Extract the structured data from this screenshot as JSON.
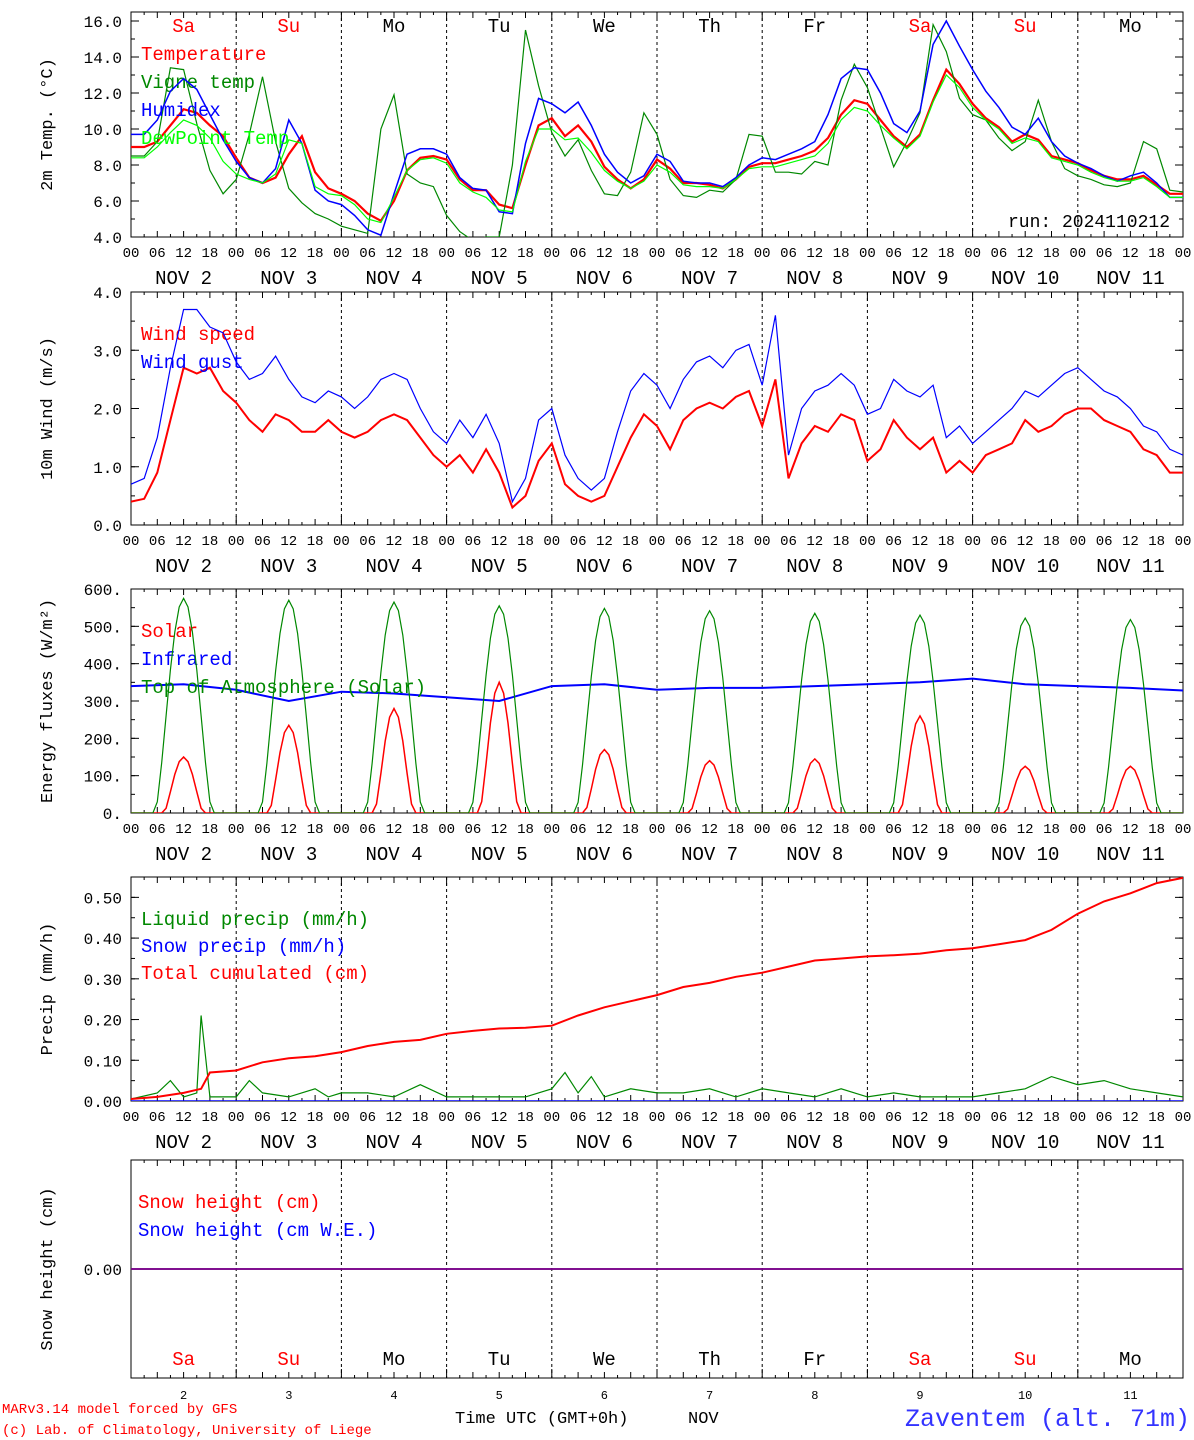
{
  "colors": {
    "red": "#ff0000",
    "green": "#008800",
    "blue": "#0000ff",
    "lightgreen": "#00ff00",
    "purple": "#800080",
    "black": "#000000",
    "place": "#3333ff"
  },
  "day_headers": [
    "Sa",
    "Su",
    "Mo",
    "Tu",
    "We",
    "Th",
    "Fr",
    "Sa",
    "Su",
    "Mo"
  ],
  "weekend_flags": [
    true,
    true,
    false,
    false,
    false,
    false,
    false,
    true,
    true,
    false
  ],
  "hour_ticks": [
    "00",
    "06",
    "12",
    "18"
  ],
  "hour_end": "00",
  "date_labels": [
    "NOV  2",
    "NOV  3",
    "NOV  4",
    "NOV  5",
    "NOV  6",
    "NOV  7",
    "NOV  8",
    "NOV  9",
    "NOV 10",
    "NOV 11"
  ],
  "bottom_day_numbers": [
    "2",
    "3",
    "4",
    "5",
    "6",
    "7",
    "8",
    "9",
    "10",
    "11"
  ],
  "footer": {
    "credit1": "MARv3.14 model forced by GFS",
    "credit2": "(c) Lab. of Climatology, University of Liege",
    "xlabel": "Time UTC (GMT+0h)",
    "month": "NOV",
    "place": "Zaventem (alt. 71m)"
  },
  "run_label": "run: 2024110212",
  "chart_data": [
    {
      "type": "line",
      "ylabel": "2m Temp. (°C)",
      "ylim": [
        4.0,
        16.5
      ],
      "yticks": [
        "4.0",
        "6.0",
        "8.0",
        "10.0",
        "12.0",
        "14.0",
        "16.0"
      ],
      "ytick_values": [
        4,
        6,
        8,
        10,
        12,
        14,
        16
      ],
      "x_hours": [
        0,
        3,
        6,
        9,
        12,
        15,
        18,
        21,
        24,
        27,
        30,
        33,
        36,
        39,
        42,
        45,
        48,
        51,
        54,
        57,
        60,
        63,
        66,
        69,
        72,
        75,
        78,
        81,
        84,
        87,
        90,
        93,
        96,
        99,
        102,
        105,
        108,
        111,
        114,
        117,
        120,
        123,
        126,
        129,
        132,
        135,
        138,
        141,
        144,
        147,
        150,
        153,
        156,
        159,
        162,
        165,
        168,
        171,
        174,
        177,
        180,
        183,
        186,
        189,
        192,
        195,
        198,
        201,
        204,
        207,
        210,
        213,
        216,
        219,
        222,
        225,
        228,
        231,
        234,
        237,
        240
      ],
      "series": [
        {
          "name": "Temperature",
          "color": "#ff0000",
          "width": 2.2,
          "values": [
            9.0,
            9.0,
            9.3,
            10.2,
            11.1,
            10.9,
            10.2,
            9.6,
            8.4,
            7.3,
            7.0,
            7.3,
            8.6,
            9.6,
            7.6,
            6.7,
            6.4,
            6.0,
            5.3,
            4.9,
            6.0,
            7.7,
            8.4,
            8.5,
            8.3,
            7.2,
            6.6,
            6.6,
            5.8,
            5.6,
            8.0,
            10.2,
            10.6,
            9.6,
            10.2,
            9.3,
            7.9,
            7.2,
            6.7,
            7.2,
            8.3,
            7.8,
            7.0,
            7.0,
            6.9,
            6.7,
            7.2,
            7.9,
            8.1,
            8.1,
            8.3,
            8.5,
            8.8,
            9.5,
            10.8,
            11.6,
            11.4,
            10.5,
            9.6,
            9.0,
            9.7,
            11.6,
            13.3,
            12.5,
            11.4,
            10.6,
            10.1,
            9.3,
            9.7,
            9.4,
            8.5,
            8.3,
            8.1,
            7.7,
            7.4,
            7.2,
            7.2,
            7.4,
            6.9,
            6.4,
            6.4
          ]
        },
        {
          "name": "Vigne temp",
          "color": "#008800",
          "width": 1.2,
          "values": [
            8.5,
            8.5,
            9.3,
            13.4,
            13.3,
            10.3,
            7.7,
            6.4,
            7.2,
            9.7,
            12.9,
            9.3,
            6.7,
            5.9,
            5.3,
            5.0,
            4.6,
            4.4,
            4.2,
            10.0,
            11.9,
            7.5,
            7.0,
            6.8,
            5.2,
            4.3,
            3.8,
            4.0,
            4.0,
            8.0,
            15.5,
            12.4,
            9.8,
            8.5,
            9.4,
            7.7,
            6.4,
            6.3,
            7.6,
            10.9,
            9.7,
            7.2,
            6.3,
            6.2,
            6.6,
            6.5,
            7.2,
            9.7,
            9.6,
            7.6,
            7.6,
            7.5,
            8.2,
            8.0,
            11.6,
            13.6,
            12.3,
            10.1,
            7.9,
            9.3,
            10.9,
            15.8,
            14.3,
            11.7,
            10.8,
            10.5,
            9.5,
            8.8,
            9.3,
            11.6,
            9.3,
            7.8,
            7.4,
            7.2,
            6.9,
            6.8,
            7.0,
            9.3,
            8.9,
            6.6,
            6.5
          ]
        },
        {
          "name": "Humidex",
          "color": "#0000ff",
          "width": 1.5,
          "values": [
            9.7,
            9.7,
            10.5,
            12.1,
            12.8,
            12.2,
            10.8,
            9.4,
            8.2,
            7.3,
            7.0,
            7.8,
            10.5,
            9.2,
            6.6,
            6.0,
            5.8,
            5.2,
            4.4,
            4.1,
            6.4,
            8.6,
            8.9,
            8.9,
            8.6,
            7.3,
            6.7,
            6.6,
            5.4,
            5.3,
            9.2,
            11.7,
            11.4,
            10.9,
            11.5,
            10.2,
            8.6,
            7.6,
            7.0,
            7.4,
            8.6,
            8.2,
            7.1,
            7.0,
            7.0,
            6.8,
            7.3,
            8.0,
            8.4,
            8.3,
            8.6,
            8.9,
            9.3,
            10.8,
            12.8,
            13.4,
            13.3,
            12.0,
            10.3,
            9.8,
            11.0,
            14.7,
            16.0,
            14.6,
            13.3,
            12.1,
            11.2,
            10.1,
            9.7,
            10.6,
            9.3,
            8.5,
            8.1,
            7.8,
            7.4,
            7.1,
            7.4,
            7.6,
            7.0,
            6.2,
            6.2
          ]
        },
        {
          "name": "DewPoint Temp",
          "color": "#00ff00",
          "width": 1.2,
          "values": [
            8.4,
            8.4,
            9.0,
            9.8,
            10.5,
            10.2,
            9.5,
            8.2,
            7.5,
            7.2,
            7.0,
            7.5,
            9.4,
            9.2,
            6.8,
            6.4,
            6.3,
            5.8,
            5.0,
            4.8,
            6.2,
            7.7,
            8.3,
            8.4,
            8.1,
            7.0,
            6.5,
            6.2,
            5.5,
            5.4,
            8.2,
            10.0,
            10.0,
            9.4,
            9.5,
            8.7,
            7.7,
            7.1,
            6.7,
            7.1,
            8.0,
            7.6,
            6.9,
            6.8,
            6.8,
            6.7,
            7.2,
            7.8,
            7.9,
            7.9,
            8.1,
            8.3,
            8.5,
            9.2,
            10.5,
            11.2,
            11.0,
            10.2,
            9.5,
            8.9,
            9.6,
            11.5,
            13.0,
            12.3,
            11.2,
            10.5,
            10.0,
            9.2,
            9.5,
            9.3,
            8.4,
            8.2,
            8.0,
            7.6,
            7.3,
            7.1,
            7.1,
            7.3,
            6.8,
            6.2,
            6.2
          ]
        }
      ]
    },
    {
      "type": "line",
      "ylabel": "10m Wind (m/s)",
      "ylim": [
        0.0,
        4.0
      ],
      "yticks": [
        "0.0",
        "1.0",
        "2.0",
        "3.0",
        "4.0"
      ],
      "ytick_values": [
        0,
        1,
        2,
        3,
        4
      ],
      "x_hours": [
        0,
        3,
        6,
        9,
        12,
        15,
        18,
        21,
        24,
        27,
        30,
        33,
        36,
        39,
        42,
        45,
        48,
        51,
        54,
        57,
        60,
        63,
        66,
        69,
        72,
        75,
        78,
        81,
        84,
        87,
        90,
        93,
        96,
        99,
        102,
        105,
        108,
        111,
        114,
        117,
        120,
        123,
        126,
        129,
        132,
        135,
        138,
        141,
        144,
        147,
        150,
        153,
        156,
        159,
        162,
        165,
        168,
        171,
        174,
        177,
        180,
        183,
        186,
        189,
        192,
        195,
        198,
        201,
        204,
        207,
        210,
        213,
        216,
        219,
        222,
        225,
        228,
        231,
        234,
        237,
        240
      ],
      "series": [
        {
          "name": "Wind speed",
          "color": "#ff0000",
          "width": 2.0,
          "values": [
            0.4,
            0.45,
            0.9,
            1.8,
            2.7,
            2.6,
            2.7,
            2.3,
            2.1,
            1.8,
            1.6,
            1.9,
            1.8,
            1.6,
            1.6,
            1.8,
            1.6,
            1.5,
            1.6,
            1.8,
            1.9,
            1.8,
            1.5,
            1.2,
            1.0,
            1.2,
            0.9,
            1.3,
            0.9,
            0.3,
            0.5,
            1.1,
            1.4,
            0.7,
            0.5,
            0.4,
            0.5,
            1.0,
            1.5,
            1.9,
            1.7,
            1.3,
            1.8,
            2.0,
            2.1,
            2.0,
            2.2,
            2.3,
            1.7,
            2.5,
            0.8,
            1.4,
            1.7,
            1.6,
            1.9,
            1.8,
            1.1,
            1.3,
            1.8,
            1.5,
            1.3,
            1.5,
            0.9,
            1.1,
            0.9,
            1.2,
            1.3,
            1.4,
            1.8,
            1.6,
            1.7,
            1.9,
            2.0,
            2.0,
            1.8,
            1.7,
            1.6,
            1.3,
            1.2,
            0.9,
            0.9
          ]
        },
        {
          "name": "Wind gust",
          "color": "#0000ff",
          "width": 1.2,
          "values": [
            0.7,
            0.8,
            1.5,
            2.7,
            3.7,
            3.7,
            3.4,
            3.3,
            2.8,
            2.5,
            2.6,
            2.9,
            2.5,
            2.2,
            2.1,
            2.3,
            2.2,
            2.0,
            2.2,
            2.5,
            2.6,
            2.5,
            2.0,
            1.6,
            1.4,
            1.8,
            1.5,
            1.9,
            1.4,
            0.4,
            0.8,
            1.8,
            2.0,
            1.2,
            0.8,
            0.6,
            0.8,
            1.6,
            2.3,
            2.6,
            2.4,
            2.0,
            2.5,
            2.8,
            2.9,
            2.7,
            3.0,
            3.1,
            2.4,
            3.6,
            1.2,
            2.0,
            2.3,
            2.4,
            2.6,
            2.4,
            1.9,
            2.0,
            2.5,
            2.3,
            2.2,
            2.4,
            1.5,
            1.7,
            1.4,
            1.6,
            1.8,
            2.0,
            2.3,
            2.2,
            2.4,
            2.6,
            2.7,
            2.5,
            2.3,
            2.2,
            2.0,
            1.7,
            1.6,
            1.3,
            1.2
          ]
        }
      ]
    },
    {
      "type": "line",
      "ylabel": "Energy fluxes (W/m²)",
      "ylim": [
        0,
        600
      ],
      "yticks": [
        "0.",
        "100.",
        "200.",
        "300.",
        "400.",
        "500.",
        "600."
      ],
      "ytick_values": [
        0,
        100,
        200,
        300,
        400,
        500,
        600
      ],
      "series": [
        {
          "name": "Solar",
          "color": "#ff0000",
          "width": 1.5,
          "peaks": [
            150,
            235,
            280,
            350,
            170,
            140,
            145,
            260,
            125,
            125
          ]
        },
        {
          "name": "Infrared",
          "color": "#0000ff",
          "width": 2.0,
          "x_hours": [
            0,
            12,
            24,
            36,
            48,
            60,
            72,
            84,
            96,
            108,
            120,
            132,
            144,
            156,
            168,
            180,
            192,
            204,
            216,
            228,
            240
          ],
          "values": [
            340,
            345,
            330,
            300,
            325,
            320,
            310,
            300,
            340,
            345,
            330,
            335,
            335,
            340,
            345,
            350,
            360,
            345,
            340,
            335,
            328
          ]
        },
        {
          "name": "Top of Atmosphere (Solar)",
          "color": "#008800",
          "width": 1.2,
          "peaks": [
            575,
            570,
            565,
            555,
            548,
            542,
            535,
            530,
            522,
            518
          ]
        }
      ]
    },
    {
      "type": "line",
      "ylabel": "Precip (mm/h)",
      "ylim": [
        0.0,
        0.55
      ],
      "yticks": [
        "0.00",
        "0.10",
        "0.20",
        "0.30",
        "0.40",
        "0.50"
      ],
      "ytick_values": [
        0,
        0.1,
        0.2,
        0.3,
        0.4,
        0.5
      ],
      "series": [
        {
          "name": "Liquid precip (mm/h)",
          "color": "#008800",
          "width": 1.2,
          "x_hours": [
            0,
            6,
            9,
            12,
            15,
            16,
            18,
            24,
            27,
            30,
            36,
            42,
            45,
            48,
            54,
            60,
            66,
            72,
            78,
            84,
            90,
            96,
            99,
            102,
            105,
            108,
            114,
            120,
            126,
            132,
            138,
            144,
            150,
            156,
            162,
            168,
            174,
            180,
            186,
            192,
            198,
            204,
            210,
            216,
            222,
            228,
            234,
            240
          ],
          "values": [
            0.005,
            0.02,
            0.05,
            0.01,
            0.02,
            0.21,
            0.01,
            0.01,
            0.05,
            0.02,
            0.01,
            0.03,
            0.01,
            0.02,
            0.02,
            0.01,
            0.04,
            0.01,
            0.01,
            0.01,
            0.01,
            0.03,
            0.07,
            0.02,
            0.06,
            0.01,
            0.03,
            0.02,
            0.02,
            0.03,
            0.01,
            0.03,
            0.02,
            0.01,
            0.03,
            0.01,
            0.02,
            0.01,
            0.01,
            0.01,
            0.02,
            0.03,
            0.06,
            0.04,
            0.05,
            0.03,
            0.02,
            0.01
          ]
        },
        {
          "name": "Snow precip (mm/h)",
          "color": "#0000ff",
          "width": 1.5,
          "x_hours": [
            0,
            240
          ],
          "values": [
            0,
            0
          ]
        },
        {
          "name": "Total cumulated (cm)",
          "color": "#ff0000",
          "width": 2.0,
          "x_hours": [
            0,
            6,
            12,
            16,
            18,
            24,
            30,
            36,
            42,
            48,
            54,
            60,
            66,
            72,
            78,
            84,
            90,
            96,
            102,
            108,
            114,
            120,
            126,
            132,
            138,
            144,
            150,
            156,
            162,
            168,
            174,
            180,
            186,
            192,
            198,
            204,
            210,
            216,
            222,
            228,
            234,
            240
          ],
          "values": [
            0.005,
            0.01,
            0.02,
            0.03,
            0.07,
            0.075,
            0.095,
            0.105,
            0.11,
            0.12,
            0.135,
            0.145,
            0.15,
            0.165,
            0.172,
            0.178,
            0.18,
            0.185,
            0.21,
            0.23,
            0.245,
            0.26,
            0.28,
            0.29,
            0.305,
            0.315,
            0.33,
            0.345,
            0.35,
            0.355,
            0.358,
            0.362,
            0.37,
            0.375,
            0.385,
            0.395,
            0.42,
            0.46,
            0.49,
            0.51,
            0.535,
            0.548
          ]
        }
      ]
    },
    {
      "type": "line",
      "ylabel": "Snow height (cm)",
      "ylim": [
        -1,
        1
      ],
      "yticks": [
        "0.00"
      ],
      "ytick_values": [
        0
      ],
      "series": [
        {
          "name": "Snow height (cm)",
          "color": "#ff0000",
          "width": 1.5,
          "x_hours": [
            0,
            240
          ],
          "values": [
            0,
            0
          ]
        },
        {
          "name": "Snow height (cm W.E.)",
          "color": "#0000ff",
          "width": 1.5,
          "x_hours": [
            0,
            240
          ],
          "values": [
            0,
            0
          ]
        }
      ]
    }
  ]
}
